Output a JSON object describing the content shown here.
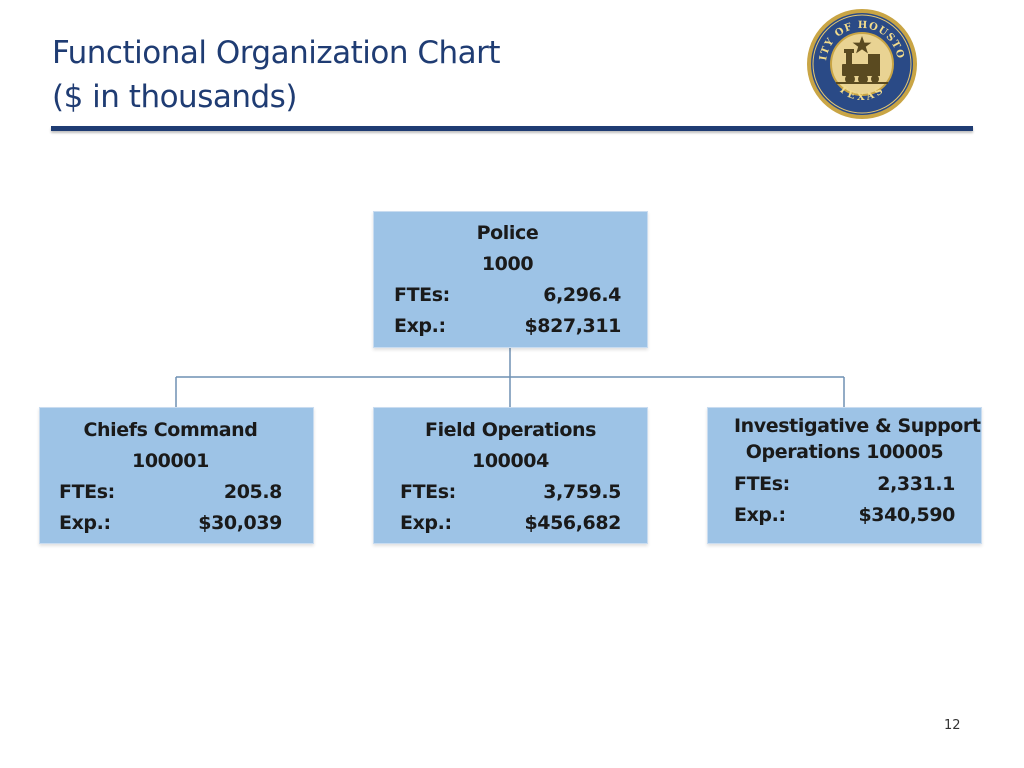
{
  "slide": {
    "title_line1": "Functional Organization Chart",
    "title_line2": "($ in thousands)",
    "page_number": "12"
  },
  "seal": {
    "text_top": "CITY OF HOUSTON",
    "text_bottom": "TEXAS"
  },
  "org": {
    "root": {
      "name": "Police",
      "code": "1000",
      "ftes_label": "FTEs:",
      "ftes_value": "6,296.4",
      "exp_label": "Exp.:",
      "exp_value": "$827,311"
    },
    "children": [
      {
        "name": "Chiefs Command",
        "code": "100001",
        "ftes_label": "FTEs:",
        "ftes_value": "205.8",
        "exp_label": "Exp.:",
        "exp_value": "$30,039"
      },
      {
        "name": "Field Operations",
        "code": "100004",
        "ftes_label": "FTEs:",
        "ftes_value": "3,759.5",
        "exp_label": "Exp.:",
        "exp_value": "$456,682"
      },
      {
        "name_line1": "Investigative & Support",
        "name_line2": "Operations  100005",
        "ftes_label": "FTEs:",
        "ftes_value": "2,331.1",
        "exp_label": "Exp.:",
        "exp_value": "$340,590"
      }
    ]
  },
  "colors": {
    "title": "#1f3c73",
    "box_fill": "#9dc3e6",
    "connector": "#6f91b3"
  }
}
